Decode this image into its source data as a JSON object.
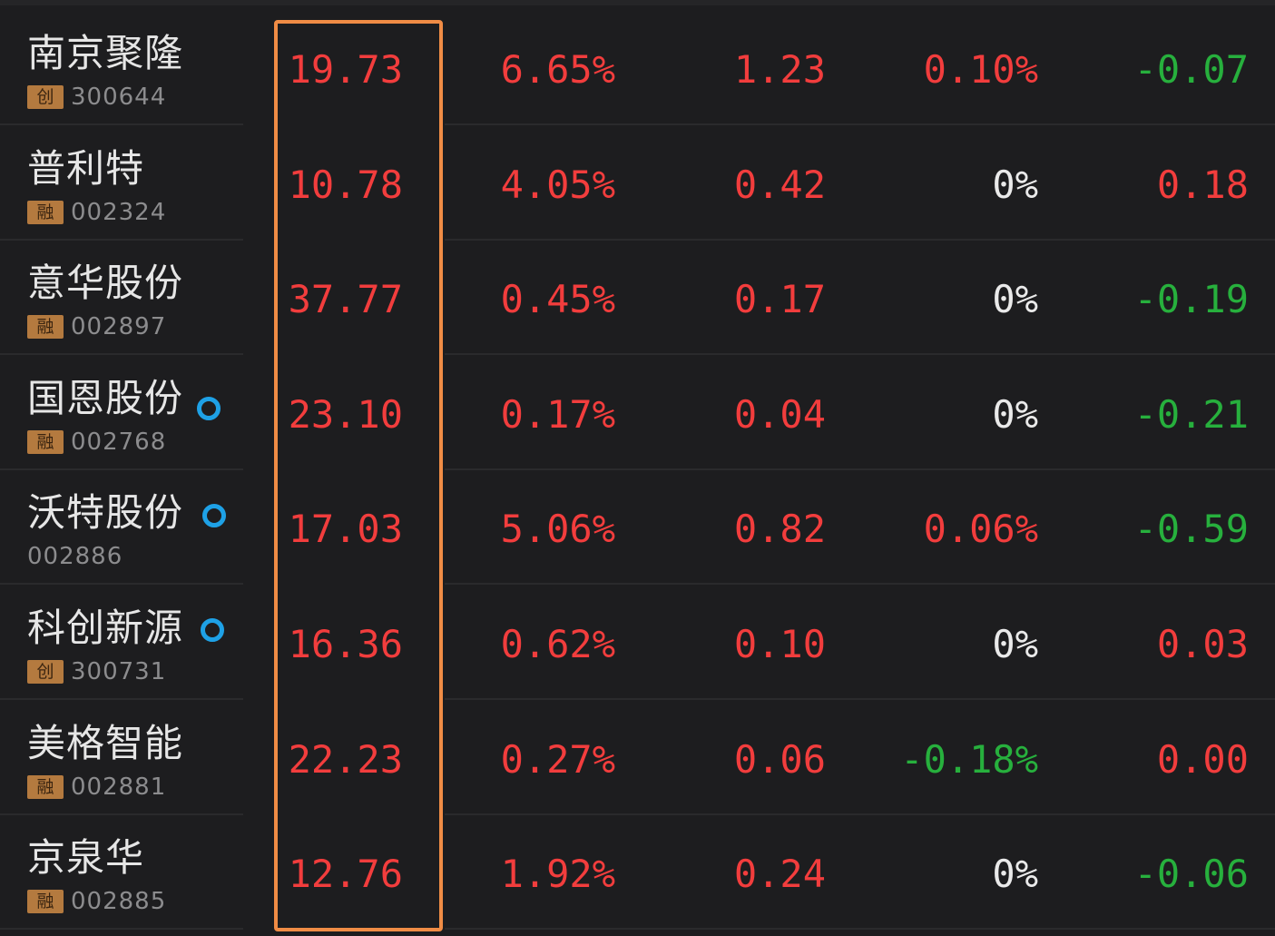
{
  "colors": {
    "up": "#f23d3d",
    "down": "#27b03d",
    "flat": "#eaeaea",
    "highlight": "#f08c45",
    "marker": "#1ea1e6"
  },
  "stocks": [
    {
      "name": "南京聚隆",
      "tag": "创",
      "code": "300644",
      "price": "19.73",
      "change_pct": "6.65%",
      "amount": "1.23",
      "speed": "0.10%",
      "last": "-0.07",
      "marker": false,
      "price_color": "up",
      "change_color": "up",
      "amount_color": "up",
      "speed_color": "up",
      "last_color": "down"
    },
    {
      "name": "普利特",
      "tag": "融",
      "code": "002324",
      "price": "10.78",
      "change_pct": "4.05%",
      "amount": "0.42",
      "speed": "0%",
      "last": "0.18",
      "marker": false,
      "price_color": "up",
      "change_color": "up",
      "amount_color": "up",
      "speed_color": "flat",
      "last_color": "up"
    },
    {
      "name": "意华股份",
      "tag": "融",
      "code": "002897",
      "price": "37.77",
      "change_pct": "0.45%",
      "amount": "0.17",
      "speed": "0%",
      "last": "-0.19",
      "marker": false,
      "price_color": "up",
      "change_color": "up",
      "amount_color": "up",
      "speed_color": "flat",
      "last_color": "down"
    },
    {
      "name": "国恩股份",
      "tag": "融",
      "code": "002768",
      "price": "23.10",
      "change_pct": "0.17%",
      "amount": "0.04",
      "speed": "0%",
      "last": "-0.21",
      "marker": true,
      "price_color": "up",
      "change_color": "up",
      "amount_color": "up",
      "speed_color": "flat",
      "last_color": "down"
    },
    {
      "name": "沃特股份",
      "tag": "",
      "code": "002886",
      "price": "17.03",
      "change_pct": "5.06%",
      "amount": "0.82",
      "speed": "0.06%",
      "last": "-0.59",
      "marker": true,
      "price_color": "up",
      "change_color": "up",
      "amount_color": "up",
      "speed_color": "up",
      "last_color": "down"
    },
    {
      "name": "科创新源",
      "tag": "创",
      "code": "300731",
      "price": "16.36",
      "change_pct": "0.62%",
      "amount": "0.10",
      "speed": "0%",
      "last": "0.03",
      "marker": true,
      "price_color": "up",
      "change_color": "up",
      "amount_color": "up",
      "speed_color": "flat",
      "last_color": "up"
    },
    {
      "name": "美格智能",
      "tag": "融",
      "code": "002881",
      "price": "22.23",
      "change_pct": "0.27%",
      "amount": "0.06",
      "speed": "-0.18%",
      "last": "0.00",
      "marker": false,
      "price_color": "up",
      "change_color": "up",
      "amount_color": "up",
      "speed_color": "down",
      "last_color": "up"
    },
    {
      "name": "京泉华",
      "tag": "融",
      "code": "002885",
      "price": "12.76",
      "change_pct": "1.92%",
      "amount": "0.24",
      "speed": "0%",
      "last": "-0.06",
      "marker": false,
      "price_color": "up",
      "change_color": "up",
      "amount_color": "up",
      "speed_color": "flat",
      "last_color": "down"
    }
  ]
}
